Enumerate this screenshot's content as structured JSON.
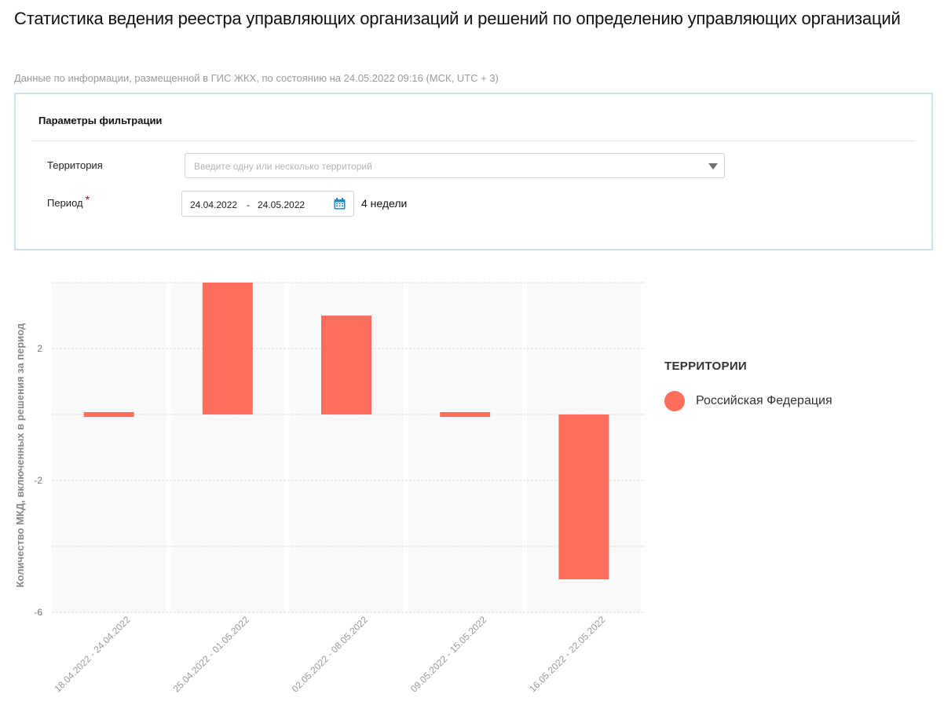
{
  "header": {
    "title": "Статистика ведения реестра управляющих организаций и решений по определению управляющих организаций",
    "subtitle": "Данные по информации, размещенной в ГИС ЖКХ, по состоянию на 24.05.2022 09:16 (МСК, UTC + 3)"
  },
  "filters": {
    "title": "Параметры фильтрации",
    "territory": {
      "label": "Территория",
      "placeholder": "Введите одну или несколько территорий"
    },
    "period": {
      "label": "Период",
      "required_mark": "*",
      "from": "24.04.2022",
      "separator": "-",
      "to": "24.05.2022",
      "duration": "4 недели"
    }
  },
  "legend": {
    "title": "ТЕРРИТОРИИ",
    "items": [
      {
        "label": "Российская Федерация",
        "color": "#ff6e5a"
      }
    ]
  },
  "colors": {
    "accent": "#ff6e5a",
    "panel_border": "#c9e1ec",
    "calendar_icon": "#1e88c7",
    "band": "#f8f9fb"
  },
  "chart_data": {
    "type": "bar",
    "title": "",
    "xlabel": "",
    "ylabel": "Количество МКД, включенных в решения за период",
    "categories": [
      "18.04.2022 - 24.04.2022",
      "25.04.2022 - 01.05.2022",
      "02.05.2022 - 08.05.2022",
      "09.05.2022 - 15.05.2022",
      "16.05.2022 - 22.05.2022"
    ],
    "series": [
      {
        "name": "Российская Федерация",
        "values": [
          0,
          4,
          3,
          0,
          -5
        ]
      }
    ],
    "ylim": [
      -6,
      4
    ],
    "yticks": [
      -6,
      -4,
      -2,
      0,
      2,
      4
    ],
    "ytick_labels": [
      "-6",
      "",
      "-2",
      "",
      "2",
      ""
    ],
    "grid": true,
    "legend_position": "right"
  }
}
